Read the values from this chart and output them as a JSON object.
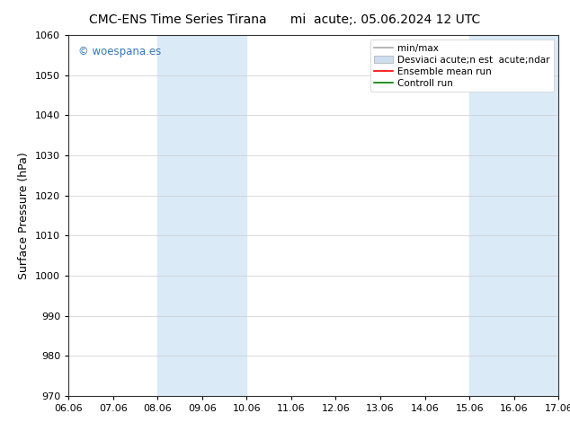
{
  "title_left": "CMC-ENS Time Series Tirana",
  "title_right": "mi  acute;. 05.06.2024 12 UTC",
  "ylabel": "Surface Pressure (hPa)",
  "ylim": [
    970,
    1060
  ],
  "yticks": [
    970,
    980,
    990,
    1000,
    1010,
    1020,
    1030,
    1040,
    1050,
    1060
  ],
  "xlabels": [
    "06.06",
    "07.06",
    "08.06",
    "09.06",
    "10.06",
    "11.06",
    "12.06",
    "13.06",
    "14.06",
    "15.06",
    "16.06",
    "17.06"
  ],
  "x_positions": [
    0,
    1,
    2,
    3,
    4,
    5,
    6,
    7,
    8,
    9,
    10,
    11
  ],
  "shaded_regions": [
    {
      "xmin": 2,
      "xmax": 4,
      "color": "#daeaf7"
    },
    {
      "xmin": 9,
      "xmax": 11,
      "color": "#daeaf7"
    }
  ],
  "legend_entries": [
    {
      "label": "min/max",
      "color": "#aaaaaa",
      "linestyle": "-",
      "linewidth": 1.2
    },
    {
      "label": "Desviaci acute;n est  acute;ndar",
      "color": "#ccdded",
      "patch": true
    },
    {
      "label": "Ensemble mean run",
      "color": "red",
      "linestyle": "-",
      "linewidth": 1.2
    },
    {
      "label": "Controll run",
      "color": "green",
      "linestyle": "-",
      "linewidth": 1.2
    }
  ],
  "watermark": "© woespana.es",
  "watermark_color": "#3377bb",
  "background_color": "#ffffff",
  "spine_color": "#333333",
  "grid_color": "#cccccc",
  "title_fontsize": 10,
  "tick_fontsize": 8,
  "ylabel_fontsize": 9,
  "legend_fontsize": 7.5
}
